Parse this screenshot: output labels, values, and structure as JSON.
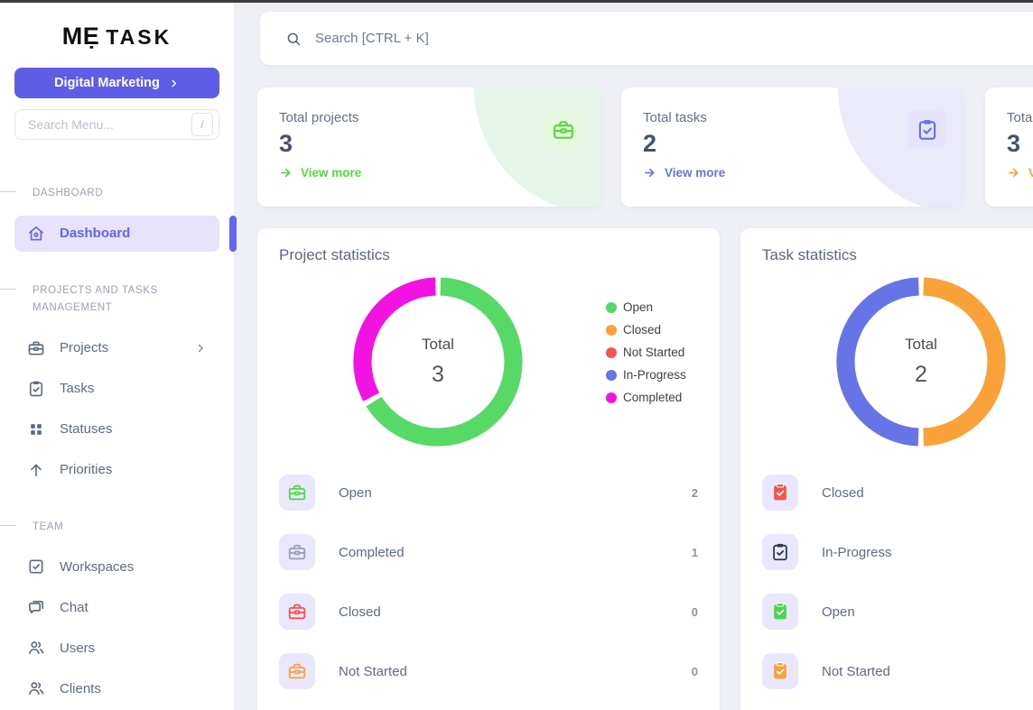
{
  "sidebar": {
    "logo": {
      "part1": "MẸ",
      "part2": "TASK"
    },
    "workspace_button": {
      "label": "Digital Marketing",
      "chevron_icon": "chevron-right-icon"
    },
    "menu_search": {
      "placeholder": "Search Menu...",
      "shortcut_key": "/"
    },
    "sections": [
      {
        "label": "DASHBOARD",
        "items": [
          {
            "label": "Dashboard",
            "icon": "home-icon",
            "active": true
          }
        ]
      },
      {
        "label": "PROJECTS AND TASKS MANAGEMENT",
        "items": [
          {
            "label": "Projects",
            "icon": "briefcase-icon",
            "chevron": true
          },
          {
            "label": "Tasks",
            "icon": "clipboard-check-icon"
          },
          {
            "label": "Statuses",
            "icon": "grid-icon"
          },
          {
            "label": "Priorities",
            "icon": "arrow-up-icon"
          }
        ]
      },
      {
        "label": "TEAM",
        "items": [
          {
            "label": "Workspaces",
            "icon": "checkbox-icon"
          },
          {
            "label": "Chat",
            "icon": "chat-icon"
          },
          {
            "label": "Users",
            "icon": "users-icon"
          },
          {
            "label": "Clients",
            "icon": "users-icon"
          }
        ]
      }
    ]
  },
  "topbar": {
    "search_placeholder": "Search [CTRL + K]"
  },
  "summary_cards": [
    {
      "label": "Total projects",
      "value": "3",
      "link": "View more",
      "accent": "#58d83f",
      "icon": "briefcase-icon",
      "icon_bg": "#e7f8e0",
      "decor": "#e5f5ea"
    },
    {
      "label": "Total tasks",
      "value": "2",
      "link": "View more",
      "accent": "#6672e8",
      "icon": "clipboard-check-icon",
      "icon_bg": "#e6e4fb",
      "decor": "#eaeaf8"
    },
    {
      "label": "Tota",
      "value": "3",
      "link": "V",
      "accent": "#f9a33b",
      "icon": "",
      "icon_bg": "#fdf1dd",
      "decor": "#fdf4e4"
    }
  ],
  "chart_data": [
    {
      "type": "donut",
      "title": "Project statistics",
      "labels": [
        "Open",
        "Closed",
        "Not Started",
        "In-Progress",
        "Completed"
      ],
      "values": [
        2,
        0,
        0,
        0,
        1
      ],
      "colors": [
        "#57d967",
        "#f9a23a",
        "#f4554d",
        "#6674e8",
        "#f213e2"
      ],
      "center_label": "Total",
      "center_value": "3",
      "legend": true,
      "legend_position": "right"
    },
    {
      "type": "donut",
      "title": "Task statistics",
      "labels": [
        "Open",
        "Closed",
        "Not Started",
        "In-Progress",
        "Completed"
      ],
      "values": [
        0,
        1,
        0,
        1,
        0
      ],
      "colors": [
        "#57d967",
        "#f9a23a",
        "#f4554d",
        "#6674e8",
        "#f213e2"
      ],
      "center_label": "Total",
      "center_value": "2",
      "legend": false
    }
  ],
  "stats_cards": [
    {
      "title": "Project statistics",
      "icon": "briefcase-icon",
      "rows": [
        {
          "label": "Open",
          "count": "2",
          "color": "#54d948",
          "variant": "outline"
        },
        {
          "label": "Completed",
          "count": "1",
          "color": "#9aa1b5",
          "variant": "outline"
        },
        {
          "label": "Closed",
          "count": "0",
          "color": "#f4554d",
          "variant": "outline"
        },
        {
          "label": "Not Started",
          "count": "0",
          "color": "#f9a33b",
          "variant": "outline"
        }
      ]
    },
    {
      "title": "Task statistics",
      "icon": "clipboard-check-icon",
      "rows": [
        {
          "label": "Closed",
          "color": "#f4554d",
          "variant": "filled"
        },
        {
          "label": "In-Progress",
          "color": "#2e3b4e",
          "variant": "outline"
        },
        {
          "label": "Open",
          "color": "#4cd64a",
          "variant": "filled"
        },
        {
          "label": "Not Started",
          "color": "#f9a33b",
          "variant": "filled"
        }
      ]
    }
  ]
}
